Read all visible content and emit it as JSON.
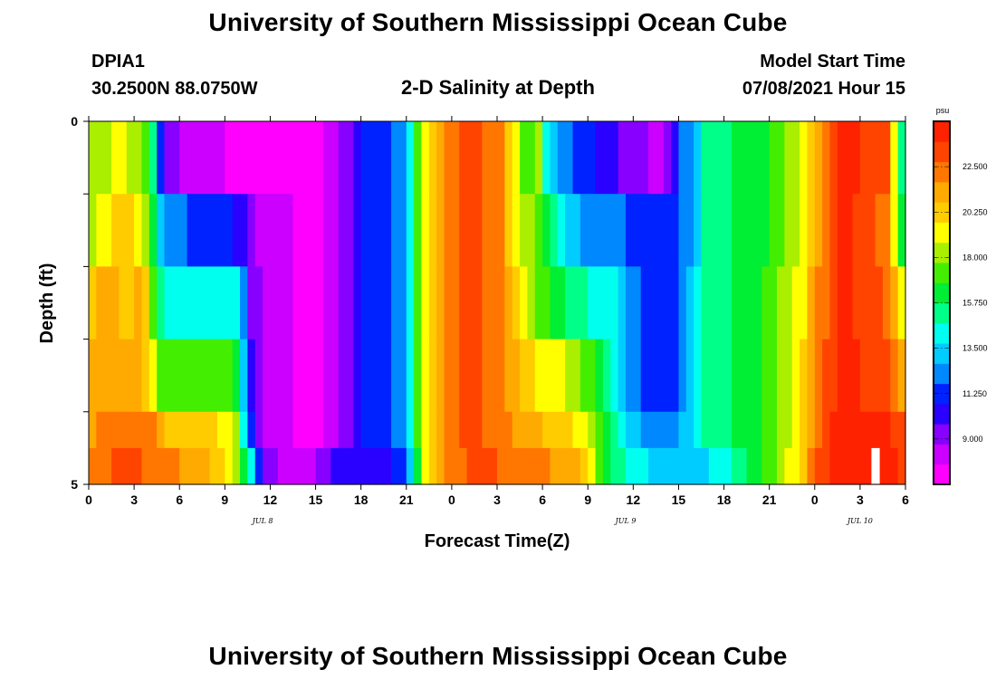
{
  "header": {
    "title": "University of Southern Mississippi Ocean Cube",
    "station": "DPIA1",
    "coords": "30.2500N  88.0750W",
    "chart_title": "2-D Salinity at Depth",
    "model_start_label": "Model Start Time",
    "model_start_value": "07/08/2021 Hour 15"
  },
  "footer": {
    "title": "University of Southern Mississippi Ocean Cube"
  },
  "chart_data": {
    "type": "heatmap",
    "title": "2-D Salinity at Depth",
    "xlabel": "Forecast Time(Z)",
    "ylabel": "Depth (ft)",
    "xlim": [
      0,
      54
    ],
    "ylim": [
      0,
      5
    ],
    "x_tick_labels": [
      "0",
      "3",
      "6",
      "9",
      "12",
      "15",
      "18",
      "21",
      "0",
      "3",
      "6",
      "9",
      "12",
      "15",
      "18",
      "21",
      "0",
      "3",
      "6"
    ],
    "y_tick_labels": [
      "0",
      "5"
    ],
    "date_labels": [
      {
        "label": "JUL 8",
        "hour": 11.5
      },
      {
        "label": "JUL 9",
        "hour": 35.5
      },
      {
        "label": "JUL 10",
        "hour": 51
      }
    ],
    "colorbar": {
      "unit": "psu",
      "vmin": 6.75,
      "vmax": 24.75,
      "ticks": [
        "22.500",
        "20.250",
        "18.000",
        "15.750",
        "13.500",
        "11.250",
        "9.000"
      ],
      "colors": [
        "#ff00ff",
        "#cc00ff",
        "#8800ff",
        "#2a00ff",
        "#0022ff",
        "#0088ff",
        "#00ccff",
        "#00ffee",
        "#00ff88",
        "#00ee33",
        "#44ee00",
        "#aaee00",
        "#ffff00",
        "#ffcc00",
        "#ffaa00",
        "#ff7700",
        "#ff4400",
        "#ff2200"
      ]
    },
    "depth_rows": [
      0,
      1,
      2,
      3,
      4,
      5
    ],
    "series": [
      {
        "name": "depth 0-1 ft",
        "knots": [
          [
            0,
            18.5
          ],
          [
            1,
            18
          ],
          [
            2,
            19
          ],
          [
            3.5,
            18
          ],
          [
            4.5,
            14
          ],
          [
            5,
            9
          ],
          [
            8,
            8
          ],
          [
            10,
            7.5
          ],
          [
            13,
            7
          ],
          [
            15,
            7
          ],
          [
            16,
            8
          ],
          [
            17,
            9
          ],
          [
            18,
            11
          ],
          [
            20,
            11.5
          ],
          [
            21,
            13
          ],
          [
            21.5,
            16
          ],
          [
            22.5,
            20
          ],
          [
            23.5,
            22
          ],
          [
            25,
            23
          ],
          [
            27,
            22.5
          ],
          [
            28,
            20
          ],
          [
            29,
            16
          ],
          [
            29.7,
            19
          ],
          [
            30.3,
            14
          ],
          [
            31,
            12.5
          ],
          [
            33,
            11
          ],
          [
            34,
            10
          ],
          [
            36,
            9.5
          ],
          [
            37.5,
            8.5
          ],
          [
            38.5,
            9
          ],
          [
            39,
            11.5
          ],
          [
            40,
            13
          ],
          [
            41,
            15.5
          ],
          [
            44,
            16
          ],
          [
            45.5,
            17
          ],
          [
            47,
            18.5
          ],
          [
            48,
            21
          ],
          [
            49,
            23
          ],
          [
            50,
            24
          ],
          [
            53,
            23
          ],
          [
            53.5,
            16
          ],
          [
            54,
            14
          ]
        ]
      },
      {
        "name": "depth 1-2 ft",
        "knots": [
          [
            0,
            18
          ],
          [
            1,
            19.5
          ],
          [
            2,
            20
          ],
          [
            3.5,
            19.5
          ],
          [
            4,
            17
          ],
          [
            5,
            12
          ],
          [
            8,
            11.5
          ],
          [
            9,
            11
          ],
          [
            10,
            10.5
          ],
          [
            11,
            8.5
          ],
          [
            12,
            8
          ],
          [
            15,
            7.5
          ],
          [
            16,
            8
          ],
          [
            17,
            9
          ],
          [
            18,
            11
          ],
          [
            20,
            11.5
          ],
          [
            21,
            13
          ],
          [
            21.5,
            16
          ],
          [
            22.5,
            20
          ],
          [
            23.5,
            22
          ],
          [
            25,
            23
          ],
          [
            27,
            22.5
          ],
          [
            28,
            20
          ],
          [
            29,
            17.5
          ],
          [
            29.5,
            18
          ],
          [
            30.5,
            15
          ],
          [
            31.5,
            14
          ],
          [
            33,
            12
          ],
          [
            37.5,
            11.5
          ],
          [
            38.5,
            10.5
          ],
          [
            39,
            11.5
          ],
          [
            40,
            13
          ],
          [
            41,
            15.5
          ],
          [
            44,
            16
          ],
          [
            45.5,
            17
          ],
          [
            47,
            18.5
          ],
          [
            48,
            21
          ],
          [
            49,
            23
          ],
          [
            50,
            24
          ],
          [
            53,
            22
          ],
          [
            53.5,
            17
          ],
          [
            54,
            15
          ]
        ]
      },
      {
        "name": "depth 2-3 ft",
        "knots": [
          [
            0,
            19
          ],
          [
            0.5,
            21
          ],
          [
            3,
            20.5
          ],
          [
            3.5,
            21
          ],
          [
            4,
            19
          ],
          [
            4.5,
            16
          ],
          [
            5.5,
            14
          ],
          [
            9.5,
            14.5
          ],
          [
            10,
            13.5
          ],
          [
            10.5,
            10
          ],
          [
            11,
            9
          ],
          [
            12,
            8
          ],
          [
            15,
            7.5
          ],
          [
            16,
            8
          ],
          [
            17,
            9
          ],
          [
            18,
            11
          ],
          [
            20,
            11.5
          ],
          [
            21,
            13
          ],
          [
            21.5,
            16
          ],
          [
            22.5,
            20
          ],
          [
            23.5,
            22
          ],
          [
            25,
            23
          ],
          [
            27,
            22.5
          ],
          [
            28,
            20.5
          ],
          [
            29,
            19
          ],
          [
            30,
            17
          ],
          [
            31,
            16
          ],
          [
            32,
            15
          ],
          [
            34,
            14.5
          ],
          [
            35,
            13.5
          ],
          [
            36,
            12
          ],
          [
            37.5,
            11
          ],
          [
            38.5,
            11
          ],
          [
            39,
            12
          ],
          [
            40,
            13.5
          ],
          [
            41,
            15.5
          ],
          [
            44,
            16
          ],
          [
            45.5,
            17.5
          ],
          [
            47,
            19
          ],
          [
            48,
            21.5
          ],
          [
            49,
            23
          ],
          [
            50,
            24
          ],
          [
            53,
            22.5
          ],
          [
            53.5,
            19.5
          ],
          [
            54,
            18
          ]
        ]
      },
      {
        "name": "depth 3-4 ft",
        "knots": [
          [
            0,
            20
          ],
          [
            0.5,
            21.5
          ],
          [
            3.5,
            21.5
          ],
          [
            4,
            19.5
          ],
          [
            5,
            17
          ],
          [
            7,
            17
          ],
          [
            9.5,
            17.5
          ],
          [
            10,
            15
          ],
          [
            11,
            9
          ],
          [
            12,
            8
          ],
          [
            15,
            7.5
          ],
          [
            16,
            8
          ],
          [
            17,
            9
          ],
          [
            18,
            11
          ],
          [
            20,
            11.5
          ],
          [
            21,
            13
          ],
          [
            21.5,
            16
          ],
          [
            22.5,
            20
          ],
          [
            23.5,
            22
          ],
          [
            25,
            23
          ],
          [
            27,
            22.5
          ],
          [
            28,
            21
          ],
          [
            29,
            20
          ],
          [
            31,
            19
          ],
          [
            32,
            18
          ],
          [
            33,
            17
          ],
          [
            34,
            16
          ],
          [
            35.5,
            13
          ],
          [
            36.5,
            11.5
          ],
          [
            38.5,
            11
          ],
          [
            39,
            12
          ],
          [
            40,
            13.5
          ],
          [
            41,
            15.5
          ],
          [
            44,
            16
          ],
          [
            45.5,
            17.5
          ],
          [
            47,
            19.5
          ],
          [
            48,
            22
          ],
          [
            49,
            23.5
          ],
          [
            50,
            24
          ],
          [
            53,
            23
          ],
          [
            54,
            21
          ]
        ]
      },
      {
        "name": "depth 4-5 ft",
        "knots": [
          [
            0,
            20.5
          ],
          [
            0.5,
            22
          ],
          [
            4,
            22.5
          ],
          [
            5,
            20.5
          ],
          [
            9.5,
            19.5
          ],
          [
            10,
            16
          ],
          [
            11,
            9
          ],
          [
            12,
            8
          ],
          [
            15,
            7.5
          ],
          [
            16,
            8
          ],
          [
            17,
            9
          ],
          [
            18,
            11
          ],
          [
            20,
            11.5
          ],
          [
            21,
            13
          ],
          [
            21.5,
            16
          ],
          [
            22.5,
            20
          ],
          [
            23.5,
            22
          ],
          [
            25,
            23
          ],
          [
            27,
            22.5
          ],
          [
            28,
            21.5
          ],
          [
            29,
            21
          ],
          [
            32,
            20
          ],
          [
            33,
            18.5
          ],
          [
            34,
            17
          ],
          [
            35,
            15
          ],
          [
            36,
            13
          ],
          [
            38.5,
            12
          ],
          [
            39,
            12.5
          ],
          [
            40,
            13.5
          ],
          [
            41,
            15.5
          ],
          [
            44,
            16
          ],
          [
            45.5,
            17.5
          ],
          [
            47,
            19.5
          ],
          [
            48,
            22
          ],
          [
            49,
            24
          ],
          [
            53,
            24
          ],
          [
            54,
            22.5
          ]
        ]
      },
      {
        "name": "depth 5 ft",
        "knots": [
          [
            0,
            21
          ],
          [
            0.5,
            22.5
          ],
          [
            3,
            23
          ],
          [
            4,
            22.5
          ],
          [
            5,
            22
          ],
          [
            8,
            21
          ],
          [
            9,
            19.5
          ],
          [
            10,
            18
          ],
          [
            10.5,
            15
          ],
          [
            11,
            13
          ],
          [
            11.5,
            9.5
          ],
          [
            13,
            8.5
          ],
          [
            14,
            8
          ],
          [
            15,
            8.5
          ],
          [
            16,
            9.5
          ],
          [
            17,
            10.5
          ],
          [
            20,
            10.5
          ],
          [
            21,
            11.5
          ],
          [
            21.5,
            15
          ],
          [
            22.5,
            20
          ],
          [
            24,
            22.5
          ],
          [
            26,
            23
          ],
          [
            29,
            22
          ],
          [
            32,
            21.5
          ],
          [
            33,
            19.5
          ],
          [
            34,
            17
          ],
          [
            35,
            15
          ],
          [
            36,
            14
          ],
          [
            39,
            13
          ],
          [
            42,
            14
          ],
          [
            43,
            15
          ],
          [
            44,
            16
          ],
          [
            45.5,
            17.5
          ],
          [
            47,
            20
          ],
          [
            48,
            22.5
          ],
          [
            49,
            24
          ],
          [
            53,
            24
          ],
          [
            54,
            23.5
          ]
        ]
      }
    ],
    "missing_cells": [
      {
        "x0": 51.75,
        "x1": 52.3,
        "depth0": 4.5,
        "depth1": 5.0
      }
    ]
  }
}
